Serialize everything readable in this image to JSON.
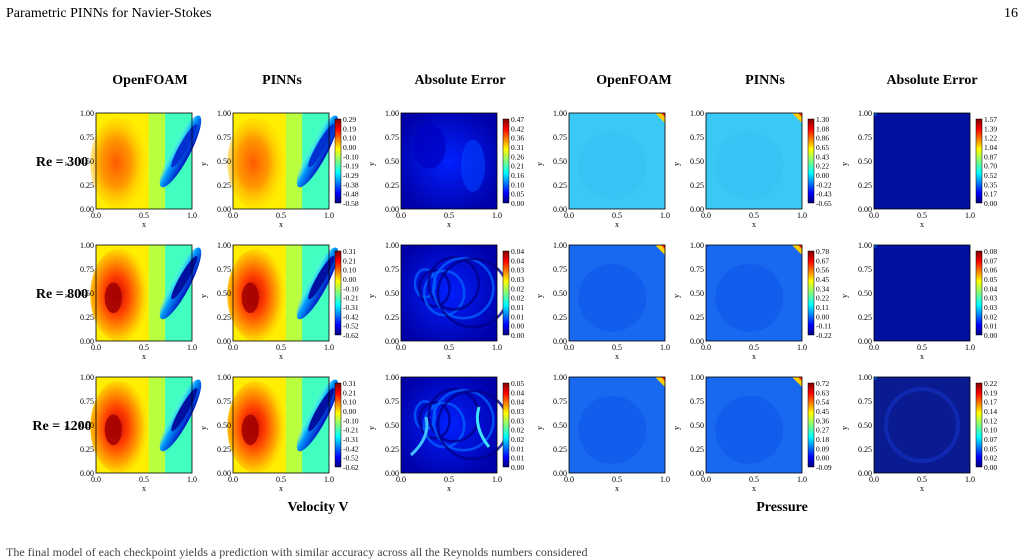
{
  "header": {
    "running_title": "Parametric PINNs for Navier-Stokes",
    "page_number": "16"
  },
  "figure": {
    "column_titles": [
      "OpenFOAM",
      "PINNs",
      "Absolute Error",
      "OpenFOAM",
      "PINNs",
      "Absolute Error"
    ],
    "row_labels": [
      "Re = 300",
      "Re = 800",
      "Re = 1200"
    ],
    "group_labels": [
      "Velocity V",
      "Pressure"
    ],
    "axis_ticks_y": [
      "0.00",
      "0.25",
      "0.50",
      "0.75",
      "1.00"
    ],
    "axis_ticks_x": [
      "0.0",
      "0.5",
      "1.0"
    ],
    "xlabel": "x",
    "ylabel": "y",
    "colorbars": [
      {
        "row": 0,
        "panel": "velocity-solution",
        "ticks": [
          "0.29",
          "0.19",
          "0.10",
          "0.00",
          "-0.10",
          "-0.19",
          "-0.29",
          "-0.38",
          "-0.48",
          "-0.58"
        ]
      },
      {
        "row": 0,
        "panel": "velocity-error",
        "ticks": [
          "0.47",
          "0.42",
          "0.36",
          "0.31",
          "0.26",
          "0.21",
          "0.16",
          "0.10",
          "0.05",
          "0.00"
        ]
      },
      {
        "row": 0,
        "panel": "pressure-solution",
        "ticks": [
          "1.30",
          "1.08",
          "0.86",
          "0.65",
          "0.43",
          "0.22",
          "0.00",
          "-0.22",
          "-0.43",
          "-0.65"
        ]
      },
      {
        "row": 0,
        "panel": "pressure-error",
        "ticks": [
          "1.57",
          "1.39",
          "1.22",
          "1.04",
          "0.87",
          "0.70",
          "0.52",
          "0.35",
          "0.17",
          "0.00"
        ]
      },
      {
        "row": 1,
        "panel": "velocity-solution",
        "ticks": [
          "0.31",
          "0.21",
          "0.10",
          "0.00",
          "-0.10",
          "-0.21",
          "-0.31",
          "-0.42",
          "-0.52",
          "-0.62"
        ]
      },
      {
        "row": 1,
        "panel": "velocity-error",
        "ticks": [
          "0.04",
          "0.04",
          "0.03",
          "0.03",
          "0.02",
          "0.02",
          "0.01",
          "0.01",
          "0.00",
          "0.00"
        ]
      },
      {
        "row": 1,
        "panel": "pressure-solution",
        "ticks": [
          "0.78",
          "0.67",
          "0.56",
          "0.45",
          "0.34",
          "0.22",
          "0.11",
          "0.00",
          "-0.11",
          "-0.22"
        ]
      },
      {
        "row": 1,
        "panel": "pressure-error",
        "ticks": [
          "0.08",
          "0.07",
          "0.06",
          "0.05",
          "0.04",
          "0.03",
          "0.03",
          "0.02",
          "0.01",
          "0.00"
        ]
      },
      {
        "row": 2,
        "panel": "velocity-solution",
        "ticks": [
          "0.31",
          "0.21",
          "0.10",
          "0.00",
          "-0.10",
          "-0.21",
          "-0.31",
          "-0.42",
          "-0.52",
          "-0.62"
        ]
      },
      {
        "row": 2,
        "panel": "velocity-error",
        "ticks": [
          "0.05",
          "0.04",
          "0.04",
          "0.03",
          "0.03",
          "0.02",
          "0.02",
          "0.01",
          "0.01",
          "0.00"
        ]
      },
      {
        "row": 2,
        "panel": "pressure-solution",
        "ticks": [
          "0.72",
          "0.63",
          "0.54",
          "0.45",
          "0.36",
          "0.27",
          "0.18",
          "0.09",
          "0.00",
          "-0.09"
        ]
      },
      {
        "row": 2,
        "panel": "pressure-error",
        "ticks": [
          "0.22",
          "0.19",
          "0.17",
          "0.14",
          "0.12",
          "0.10",
          "0.07",
          "0.05",
          "0.02",
          "0.00"
        ]
      }
    ]
  },
  "colors": {
    "jet_low": "#00007f",
    "jet_mid": "#7fff7f",
    "jet_high": "#7f0000"
  },
  "footer_text": "The final model of each checkpoint yields a prediction with similar accuracy across all the Reynolds numbers considered"
}
